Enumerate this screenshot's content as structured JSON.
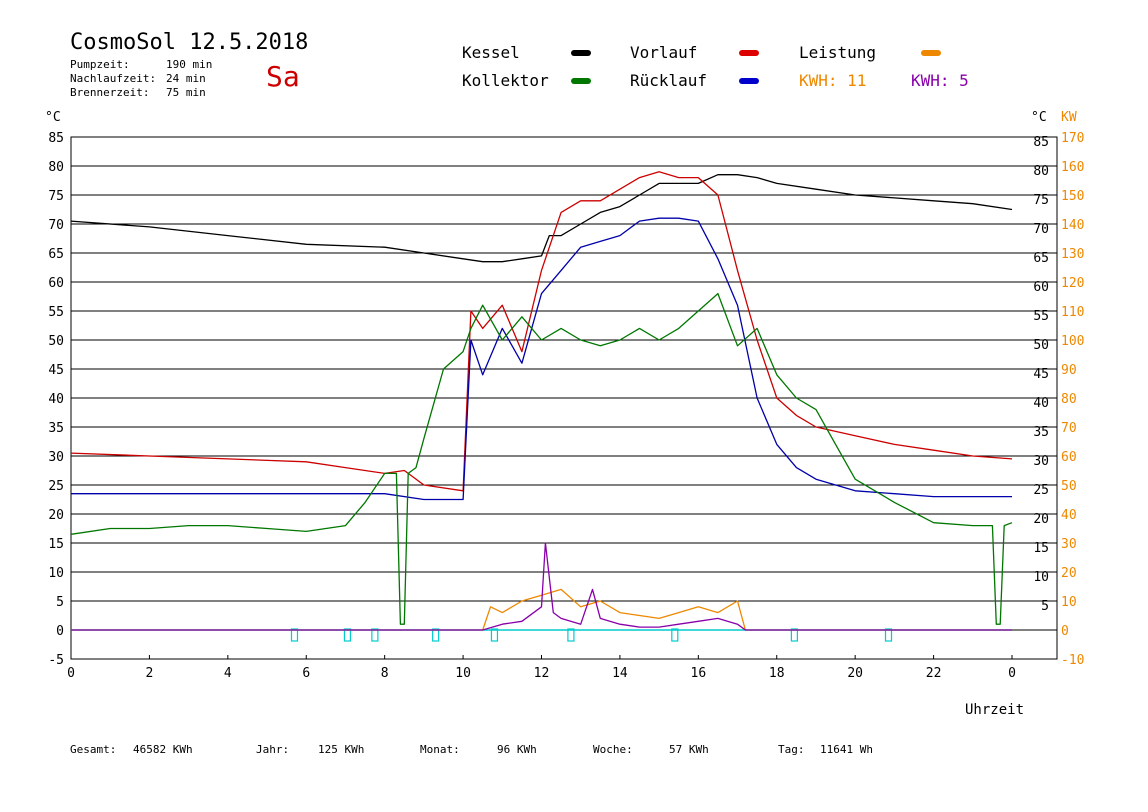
{
  "header": {
    "title": "CosmoSol 12.5.2018",
    "day": "Sa",
    "stats": [
      {
        "label": "Pumpzeit:",
        "value": "190 min"
      },
      {
        "label": "Nachlaufzeit:",
        "value": "24 min"
      },
      {
        "label": "Brennerzeit:",
        "value": "75 min"
      }
    ]
  },
  "legend": {
    "kessel": "Kessel",
    "vorlauf": "Vorlauf",
    "leistung": "Leistung",
    "kollektor": "Kollektor",
    "ruecklauf": "Rücklauf",
    "kwh1": "KWH: 11",
    "kwh2": "KWH: 5"
  },
  "colors": {
    "kessel": "#000000",
    "vorlauf": "#cc0000",
    "ruecklauf": "#0000aa",
    "kollektor": "#007700",
    "leistung": "#ee8800",
    "kwh2": "#8800aa",
    "pump": "#00cccc"
  },
  "footer": {
    "gesamt_label": "Gesamt:",
    "gesamt": "46582 KWh",
    "jahr_label": "Jahr:",
    "jahr": "125 KWh",
    "monat_label": "Monat:",
    "monat": "96 KWh",
    "woche_label": "Woche:",
    "woche": "57 KWh",
    "tag_label": "Tag:",
    "tag": "11641 Wh"
  },
  "chart_data": {
    "type": "line",
    "xlabel": "Uhrzeit",
    "ylabel_left": "°C",
    "ylabel_right_c": "°C",
    "ylabel_right_kw": "KW",
    "xlim": [
      0,
      24
    ],
    "ylim": [
      -5,
      85
    ],
    "y2lim": [
      -10,
      170
    ],
    "x_ticks": [
      "0",
      "2",
      "4",
      "6",
      "8",
      "10",
      "12",
      "14",
      "16",
      "18",
      "20",
      "22",
      "0"
    ],
    "y_ticks": [
      85,
      80,
      75,
      70,
      65,
      60,
      55,
      50,
      45,
      40,
      35,
      30,
      25,
      20,
      15,
      10,
      5,
      0,
      -5
    ],
    "y_right_ticks": [
      85,
      80,
      75,
      70,
      65,
      60,
      55,
      50,
      45,
      40,
      35,
      30,
      25,
      20,
      15,
      10,
      5
    ],
    "y2_ticks": [
      170,
      160,
      150,
      140,
      130,
      120,
      110,
      100,
      90,
      80,
      70,
      60,
      50,
      40,
      30,
      20,
      10,
      0,
      -10
    ],
    "grid": true,
    "series": [
      {
        "name": "Kessel",
        "color": "#000000",
        "x": [
          0,
          2,
          4,
          6,
          8,
          9,
          10,
          10.5,
          11,
          11.5,
          12,
          12.2,
          12.5,
          13,
          13.5,
          14,
          14.5,
          15,
          15.5,
          16,
          16.5,
          17,
          17.5,
          18,
          19,
          20,
          21,
          22,
          23,
          24
        ],
        "y": [
          70.5,
          69.5,
          68,
          66.5,
          66,
          65,
          64,
          63.5,
          63.5,
          64,
          64.5,
          68,
          68,
          70,
          72,
          73,
          75,
          77,
          77,
          77,
          78.5,
          78.5,
          78,
          77,
          76,
          75,
          74.5,
          74,
          73.5,
          72.5
        ]
      },
      {
        "name": "Vorlauf",
        "color": "#cc0000",
        "x": [
          0,
          2,
          4,
          6,
          7,
          8,
          8.5,
          9,
          10,
          10.2,
          10.5,
          11,
          11.5,
          12,
          12.5,
          13,
          13.5,
          14,
          14.5,
          15,
          15.5,
          16,
          16.5,
          17,
          17.5,
          18,
          18.5,
          19,
          20,
          21,
          22,
          23,
          24
        ],
        "y": [
          30.5,
          30,
          29.5,
          29,
          28,
          27,
          27.5,
          25,
          24,
          55,
          52,
          56,
          48,
          62,
          72,
          74,
          74,
          76,
          78,
          79,
          78,
          78,
          75,
          62,
          50,
          40,
          37,
          35,
          33.5,
          32,
          31,
          30,
          29.5
        ]
      },
      {
        "name": "Rücklauf",
        "color": "#0000aa",
        "x": [
          0,
          2,
          4,
          6,
          8,
          9,
          10,
          10.2,
          10.5,
          11,
          11.5,
          12,
          12.5,
          13,
          13.5,
          14,
          14.5,
          15,
          15.5,
          16,
          16.5,
          17,
          17.5,
          18,
          18.5,
          19,
          20,
          21,
          22,
          23,
          24
        ],
        "y": [
          23.5,
          23.5,
          23.5,
          23.5,
          23.5,
          22.5,
          22.5,
          50,
          44,
          52,
          46,
          58,
          62,
          66,
          67,
          68,
          70.5,
          71,
          71,
          70.5,
          64,
          56,
          40,
          32,
          28,
          26,
          24,
          23.5,
          23,
          23,
          23
        ]
      },
      {
        "name": "Kollektor",
        "color": "#007700",
        "x": [
          0,
          1,
          2,
          3,
          4,
          5,
          6,
          7,
          7.5,
          8,
          8.3,
          8.4,
          8.5,
          8.6,
          8.8,
          9,
          9.5,
          10,
          10.2,
          10.5,
          11,
          11.5,
          12,
          12.5,
          13,
          13.5,
          14,
          14.5,
          15,
          15.5,
          16,
          16.5,
          17,
          17.5,
          18,
          18.5,
          19,
          19.5,
          20,
          21,
          22,
          23,
          23.5,
          23.6,
          23.7,
          23.8,
          24
        ],
        "y": [
          16.5,
          17.5,
          17.5,
          18,
          18,
          17.5,
          17,
          18,
          22,
          27,
          27,
          1,
          1,
          27,
          28,
          33,
          45,
          48,
          52,
          56,
          50,
          54,
          50,
          52,
          50,
          49,
          50,
          52,
          50,
          52,
          55,
          58,
          49,
          52,
          44,
          40,
          38,
          32,
          26,
          22,
          18.5,
          18,
          18,
          1,
          1,
          18,
          18.5
        ]
      },
      {
        "name": "Leistung",
        "color": "#ee8800",
        "y_axis": "right",
        "x": [
          0,
          10.5,
          10.7,
          11,
          11.5,
          12,
          12.5,
          13,
          13.5,
          14,
          14.5,
          15,
          15.5,
          16,
          16.5,
          17,
          17.2,
          24
        ],
        "y": [
          0,
          0,
          8,
          6,
          10,
          12,
          14,
          8,
          10,
          6,
          5,
          4,
          6,
          8,
          6,
          10,
          0,
          0
        ]
      },
      {
        "name": "KWH: 5",
        "color": "#8800aa",
        "y_axis": "right",
        "x": [
          0,
          10.5,
          11,
          11.5,
          12,
          12.1,
          12.3,
          12.5,
          13,
          13.3,
          13.5,
          14,
          14.5,
          15,
          15.5,
          16,
          16.5,
          17,
          17.2,
          24
        ],
        "y": [
          0,
          0,
          2,
          3,
          8,
          30,
          6,
          4,
          2,
          14,
          4,
          2,
          1,
          1,
          2,
          3,
          4,
          2,
          0,
          0
        ]
      }
    ],
    "pump_marks_x": [
      5.7,
      7.05,
      7.75,
      9.3,
      10.8,
      12.75,
      15.4,
      18.45,
      20.85
    ]
  }
}
